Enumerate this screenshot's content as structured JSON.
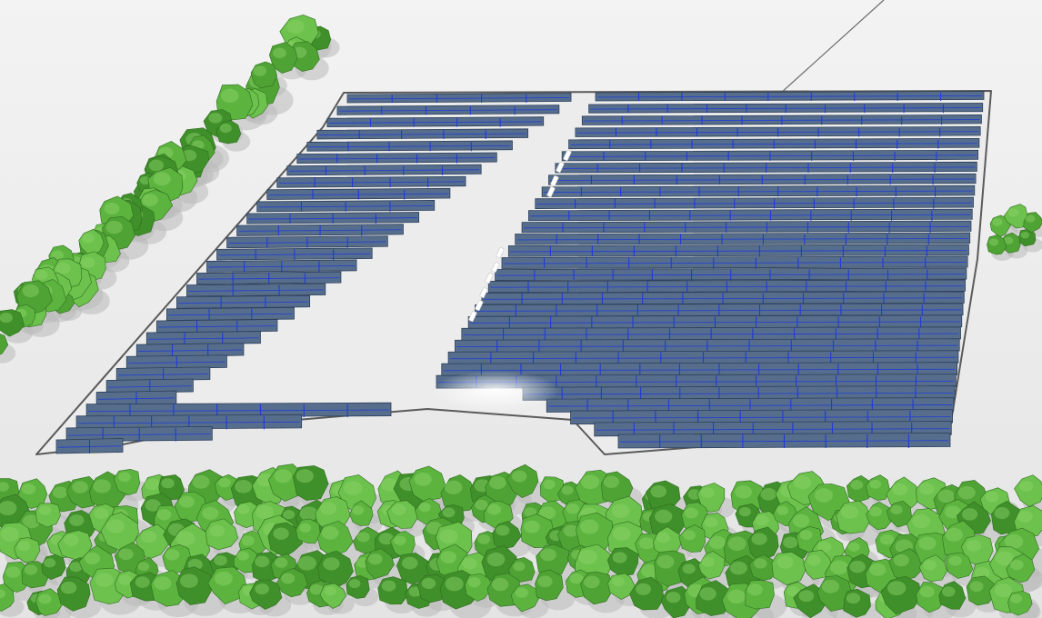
{
  "scene": {
    "ground_color": "#ececec",
    "ground_shadow_color": "#d4d4d4",
    "tree_colors": [
      "#3f8f2a",
      "#4fa334",
      "#5cb43f",
      "#6cc24c"
    ],
    "tree_shadow_color": "#b9b9b9",
    "panel_color": "#566e8c",
    "panel_edge_color": "#2d3f5a",
    "wire_color": "#1f3ad8",
    "fence_color": "#5a5a5a",
    "equipment_color": "#ffffff"
  }
}
